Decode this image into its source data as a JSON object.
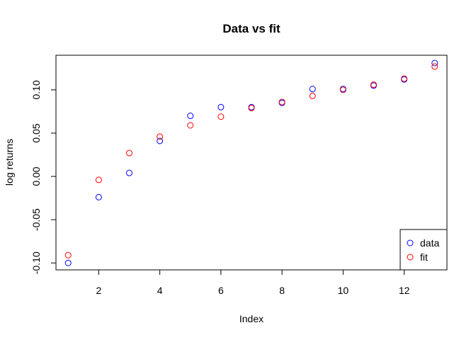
{
  "chart_data": {
    "type": "scatter",
    "title": "Data vs fit",
    "xlabel": "Index",
    "ylabel": "log returns",
    "xlim": [
      0.6,
      13.4
    ],
    "ylim": [
      -0.108,
      0.14
    ],
    "xticks": [
      2,
      4,
      6,
      8,
      10,
      12
    ],
    "xtick_labels": [
      "2",
      "4",
      "6",
      "8",
      "10",
      "12"
    ],
    "yticks": [
      -0.1,
      -0.05,
      0.0,
      0.05,
      0.1
    ],
    "ytick_labels": [
      "-0.10",
      "-0.05",
      "0.00",
      "0.05",
      "0.10"
    ],
    "grid": false,
    "legend_position": "bottom-right",
    "x": [
      1,
      2,
      3,
      4,
      5,
      6,
      7,
      8,
      9,
      10,
      11,
      12,
      13
    ],
    "series": [
      {
        "name": "data",
        "color": "#0000ff",
        "marker": "open-circle",
        "values": [
          -0.1,
          -0.024,
          0.004,
          0.041,
          0.07,
          0.08,
          0.08,
          0.085,
          0.101,
          0.101,
          0.105,
          0.112,
          0.131
        ]
      },
      {
        "name": "fit",
        "color": "#ff0000",
        "marker": "open-circle",
        "values": [
          -0.091,
          -0.004,
          0.027,
          0.046,
          0.059,
          0.069,
          0.079,
          0.086,
          0.093,
          0.1,
          0.106,
          0.113,
          0.127
        ]
      }
    ]
  }
}
